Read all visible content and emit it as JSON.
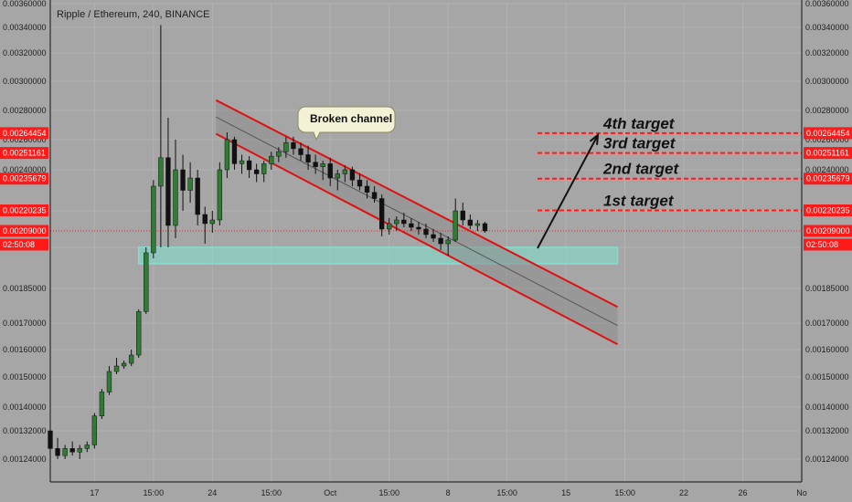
{
  "header": {
    "title": "Ripple / Ethereum, 240, BINANCE"
  },
  "price_axis": {
    "ticks": [
      {
        "value": 0.0036,
        "label": "0.00360000"
      },
      {
        "value": 0.0034,
        "label": "0.00340000"
      },
      {
        "value": 0.0032,
        "label": "0.00320000"
      },
      {
        "value": 0.003,
        "label": "0.00300000"
      },
      {
        "value": 0.0028,
        "label": "0.00280000"
      },
      {
        "value": 0.0026,
        "label": "0.00260000"
      },
      {
        "value": 0.0024,
        "label": "0.00240000"
      },
      {
        "value": 0.0022,
        "label": "0.00220000"
      },
      {
        "value": 0.002,
        "label": "0.00200000"
      },
      {
        "value": 0.00185,
        "label": "0.00185000"
      },
      {
        "value": 0.0017,
        "label": "0.00170000"
      },
      {
        "value": 0.0016,
        "label": "0.00160000"
      },
      {
        "value": 0.0015,
        "label": "0.00150000"
      },
      {
        "value": 0.0014,
        "label": "0.00140000"
      },
      {
        "value": 0.00132,
        "label": "0.00132000"
      },
      {
        "value": 0.00124,
        "label": "0.00124000"
      }
    ]
  },
  "time_axis": {
    "ticks": [
      {
        "t": 0.0,
        "label": ""
      },
      {
        "t": 6.0,
        "label": "17"
      },
      {
        "t": 14.0,
        "label": "15:00"
      },
      {
        "t": 22.0,
        "label": "24"
      },
      {
        "t": 30.0,
        "label": "15:00"
      },
      {
        "t": 38.0,
        "label": "Oct"
      },
      {
        "t": 46.0,
        "label": "15:00"
      },
      {
        "t": 54.0,
        "label": "8"
      },
      {
        "t": 62.0,
        "label": "15:00"
      },
      {
        "t": 70.0,
        "label": "15"
      },
      {
        "t": 78.0,
        "label": "15:00"
      },
      {
        "t": 86.0,
        "label": "22"
      },
      {
        "t": 94.0,
        "label": "26"
      },
      {
        "t": 102.0,
        "label": "No"
      }
    ]
  },
  "price_tags": [
    {
      "value": "0.00264454",
      "color": "#ff1a1a"
    },
    {
      "value": "0.00251161",
      "color": "#ff1a1a"
    },
    {
      "value": "0.00235679",
      "color": "#ff1a1a"
    },
    {
      "value": "0.00220235",
      "color": "#ff1a1a"
    },
    {
      "value": "0.00209000",
      "color": "#ff1a1a"
    },
    {
      "value": "02:50:08",
      "color": "#ff1a1a"
    }
  ],
  "targets": [
    {
      "label": "4th target",
      "price": 0.00264454
    },
    {
      "label": "3rd target",
      "price": 0.00251161
    },
    {
      "label": "2nd target",
      "price": 0.00235679
    },
    {
      "label": "1st target",
      "price": 0.00220235
    }
  ],
  "callout": {
    "text": "Broken channel"
  },
  "colors": {
    "background": "#a6a6a6",
    "up": "#2e7d32",
    "down": "#111111",
    "channel": "#e01010",
    "support": "#7fe0d0",
    "tag": "#ff1a1a"
  },
  "chart_data": {
    "type": "candlestick",
    "title": "Ripple / Ethereum, 240, BINANCE",
    "ylim": [
      0.0012,
      0.0036
    ],
    "last_price": 0.00209,
    "countdown": "02:50:08",
    "resistance_channel": {
      "upper": [
        [
          22.5,
          0.00287
        ],
        [
          77,
          0.00177
        ]
      ],
      "lower": [
        [
          22.5,
          0.00264
        ],
        [
          77,
          0.00162
        ]
      ]
    },
    "support_zone": [
      [
        12,
        0.002
      ],
      [
        77,
        0.00194
      ]
    ],
    "target_levels": [
      0.00220235,
      0.00235679,
      0.00251161,
      0.00264454
    ],
    "annotation": "Broken channel",
    "candles": [
      {
        "t": 0,
        "o": 0.00132,
        "h": 0.00133,
        "l": 0.00126,
        "c": 0.00127
      },
      {
        "t": 1,
        "o": 0.00127,
        "h": 0.0013,
        "l": 0.00124,
        "c": 0.00125
      },
      {
        "t": 2,
        "o": 0.00125,
        "h": 0.00128,
        "l": 0.00124,
        "c": 0.00127
      },
      {
        "t": 3,
        "o": 0.00127,
        "h": 0.00129,
        "l": 0.00125,
        "c": 0.00126
      },
      {
        "t": 4,
        "o": 0.00126,
        "h": 0.00128,
        "l": 0.00124,
        "c": 0.00127
      },
      {
        "t": 5,
        "o": 0.00127,
        "h": 0.00129,
        "l": 0.00126,
        "c": 0.00128
      },
      {
        "t": 6,
        "o": 0.00128,
        "h": 0.00138,
        "l": 0.00127,
        "c": 0.00137
      },
      {
        "t": 7,
        "o": 0.00137,
        "h": 0.00146,
        "l": 0.00136,
        "c": 0.00145
      },
      {
        "t": 8,
        "o": 0.00145,
        "h": 0.00154,
        "l": 0.00144,
        "c": 0.00152
      },
      {
        "t": 9,
        "o": 0.00152,
        "h": 0.00157,
        "l": 0.00151,
        "c": 0.00154
      },
      {
        "t": 10,
        "o": 0.00154,
        "h": 0.00156,
        "l": 0.00153,
        "c": 0.00155
      },
      {
        "t": 11,
        "o": 0.00155,
        "h": 0.0016,
        "l": 0.00154,
        "c": 0.00158
      },
      {
        "t": 12,
        "o": 0.00158,
        "h": 0.00176,
        "l": 0.00157,
        "c": 0.00175
      },
      {
        "t": 13,
        "o": 0.00175,
        "h": 0.002,
        "l": 0.00174,
        "c": 0.00198
      },
      {
        "t": 14,
        "o": 0.00198,
        "h": 0.00235,
        "l": 0.00196,
        "c": 0.00232
      },
      {
        "t": 15,
        "o": 0.00232,
        "h": 0.00342,
        "l": 0.002,
        "c": 0.00248
      },
      {
        "t": 16,
        "o": 0.00248,
        "h": 0.00275,
        "l": 0.002,
        "c": 0.00212
      },
      {
        "t": 17,
        "o": 0.00212,
        "h": 0.0026,
        "l": 0.00205,
        "c": 0.0024
      },
      {
        "t": 18,
        "o": 0.0024,
        "h": 0.0025,
        "l": 0.0022,
        "c": 0.0023
      },
      {
        "t": 19,
        "o": 0.0023,
        "h": 0.00245,
        "l": 0.00224,
        "c": 0.00236
      },
      {
        "t": 20,
        "o": 0.00236,
        "h": 0.0024,
        "l": 0.00212,
        "c": 0.00218
      },
      {
        "t": 21,
        "o": 0.00218,
        "h": 0.00222,
        "l": 0.00202,
        "c": 0.00213
      },
      {
        "t": 22,
        "o": 0.00213,
        "h": 0.0022,
        "l": 0.00208,
        "c": 0.00215
      },
      {
        "t": 23,
        "o": 0.00215,
        "h": 0.00245,
        "l": 0.00212,
        "c": 0.0024
      },
      {
        "t": 24,
        "o": 0.0024,
        "h": 0.00265,
        "l": 0.00236,
        "c": 0.0026
      },
      {
        "t": 25,
        "o": 0.0026,
        "h": 0.00262,
        "l": 0.0024,
        "c": 0.00244
      },
      {
        "t": 26,
        "o": 0.00244,
        "h": 0.0025,
        "l": 0.00238,
        "c": 0.00246
      },
      {
        "t": 27,
        "o": 0.00246,
        "h": 0.00249,
        "l": 0.00236,
        "c": 0.0024
      },
      {
        "t": 28,
        "o": 0.0024,
        "h": 0.00244,
        "l": 0.00234,
        "c": 0.00238
      },
      {
        "t": 29,
        "o": 0.00238,
        "h": 0.00246,
        "l": 0.00234,
        "c": 0.00244
      },
      {
        "t": 30,
        "o": 0.00244,
        "h": 0.00252,
        "l": 0.0024,
        "c": 0.00249
      },
      {
        "t": 31,
        "o": 0.00249,
        "h": 0.00255,
        "l": 0.00245,
        "c": 0.00252
      },
      {
        "t": 32,
        "o": 0.00252,
        "h": 0.00262,
        "l": 0.00248,
        "c": 0.00258
      },
      {
        "t": 33,
        "o": 0.00258,
        "h": 0.00262,
        "l": 0.0025,
        "c": 0.00254
      },
      {
        "t": 34,
        "o": 0.00254,
        "h": 0.00258,
        "l": 0.00246,
        "c": 0.0025
      },
      {
        "t": 35,
        "o": 0.0025,
        "h": 0.00256,
        "l": 0.0024,
        "c": 0.00245
      },
      {
        "t": 36,
        "o": 0.00245,
        "h": 0.0025,
        "l": 0.00238,
        "c": 0.00242
      },
      {
        "t": 37,
        "o": 0.00242,
        "h": 0.00246,
        "l": 0.00235,
        "c": 0.00244
      },
      {
        "t": 38,
        "o": 0.00244,
        "h": 0.00248,
        "l": 0.00232,
        "c": 0.00236
      },
      {
        "t": 39,
        "o": 0.00236,
        "h": 0.0024,
        "l": 0.0023,
        "c": 0.00238
      },
      {
        "t": 40,
        "o": 0.00238,
        "h": 0.00243,
        "l": 0.00234,
        "c": 0.0024
      },
      {
        "t": 41,
        "o": 0.0024,
        "h": 0.00242,
        "l": 0.00232,
        "c": 0.00235
      },
      {
        "t": 42,
        "o": 0.00235,
        "h": 0.00238,
        "l": 0.0023,
        "c": 0.00232
      },
      {
        "t": 43,
        "o": 0.00232,
        "h": 0.00235,
        "l": 0.00226,
        "c": 0.00229
      },
      {
        "t": 44,
        "o": 0.00229,
        "h": 0.00232,
        "l": 0.00224,
        "c": 0.00226
      },
      {
        "t": 45,
        "o": 0.00226,
        "h": 0.00228,
        "l": 0.00206,
        "c": 0.0021
      },
      {
        "t": 46,
        "o": 0.0021,
        "h": 0.00216,
        "l": 0.00207,
        "c": 0.00213
      },
      {
        "t": 47,
        "o": 0.00213,
        "h": 0.00217,
        "l": 0.00209,
        "c": 0.00215
      },
      {
        "t": 48,
        "o": 0.00215,
        "h": 0.00219,
        "l": 0.00211,
        "c": 0.00213
      },
      {
        "t": 49,
        "o": 0.00213,
        "h": 0.00216,
        "l": 0.00209,
        "c": 0.00211
      },
      {
        "t": 50,
        "o": 0.00211,
        "h": 0.00214,
        "l": 0.00207,
        "c": 0.0021
      },
      {
        "t": 51,
        "o": 0.0021,
        "h": 0.00213,
        "l": 0.00205,
        "c": 0.00207
      },
      {
        "t": 52,
        "o": 0.00207,
        "h": 0.0021,
        "l": 0.00203,
        "c": 0.00205
      },
      {
        "t": 53,
        "o": 0.00205,
        "h": 0.00208,
        "l": 0.00199,
        "c": 0.00202
      },
      {
        "t": 54,
        "o": 0.00202,
        "h": 0.00206,
        "l": 0.00197,
        "c": 0.00204
      },
      {
        "t": 55,
        "o": 0.00204,
        "h": 0.00226,
        "l": 0.00203,
        "c": 0.0022
      },
      {
        "t": 56,
        "o": 0.0022,
        "h": 0.00224,
        "l": 0.00212,
        "c": 0.00215
      },
      {
        "t": 57,
        "o": 0.00215,
        "h": 0.00218,
        "l": 0.0021,
        "c": 0.00212
      },
      {
        "t": 58,
        "o": 0.00212,
        "h": 0.00215,
        "l": 0.00209,
        "c": 0.00213
      },
      {
        "t": 59,
        "o": 0.00213,
        "h": 0.00214,
        "l": 0.00208,
        "c": 0.00209
      }
    ]
  }
}
